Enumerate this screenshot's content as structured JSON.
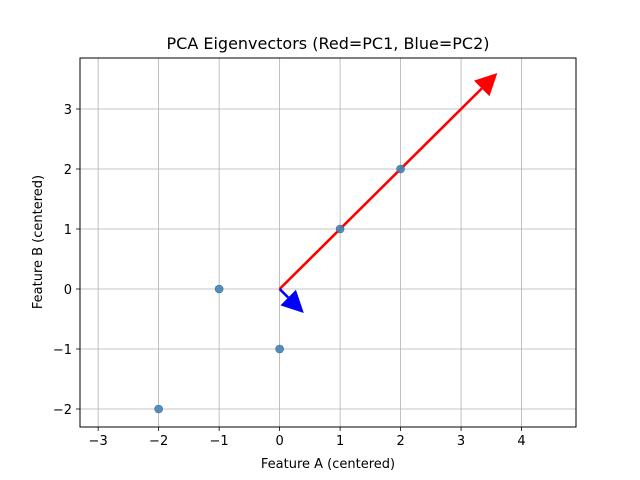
{
  "chart_data": {
    "type": "scatter",
    "title": "PCA Eigenvectors (Red=PC1, Blue=PC2)",
    "xlabel": "Feature A (centered)",
    "ylabel": "Feature B (centered)",
    "xlim": [
      -3.3,
      4.9
    ],
    "ylim": [
      -2.3,
      3.85
    ],
    "xticks": [
      -3,
      -2,
      -1,
      0,
      1,
      2,
      3,
      4
    ],
    "yticks": [
      -2,
      -1,
      0,
      1,
      2,
      3
    ],
    "grid": true,
    "points": {
      "color": "#4682b4",
      "x": [
        -2,
        -1,
        0,
        1,
        2
      ],
      "y": [
        -2,
        0,
        -1,
        1,
        2
      ]
    },
    "vectors": [
      {
        "component": "PC1",
        "color": "#ff0000",
        "origin": [
          0,
          0
        ],
        "end": [
          3.6,
          3.6
        ]
      },
      {
        "component": "PC2",
        "color": "#0000ff",
        "origin": [
          0,
          0
        ],
        "end": [
          0.4,
          -0.4
        ]
      }
    ]
  }
}
